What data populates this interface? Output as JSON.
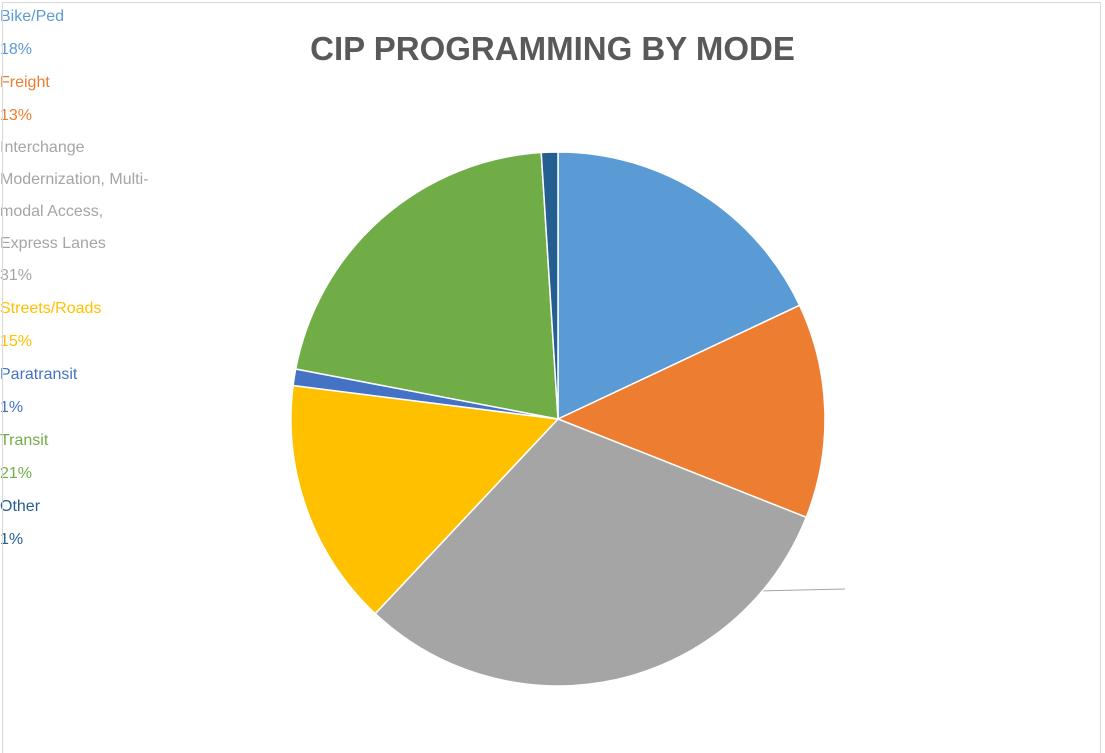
{
  "chart_data": {
    "type": "pie",
    "title": "CIP PROGRAMMING BY MODE",
    "categories": [
      "Bike/Ped",
      "Freight",
      "Interchange Modernization, Multi-modal Access, Express Lanes",
      "Streets/Roads",
      "Paratransit",
      "Transit",
      "Other"
    ],
    "values": [
      18,
      13,
      31,
      15,
      1,
      21,
      1
    ],
    "value_labels": [
      "18%",
      "13%",
      "31%",
      "15%",
      "1%",
      "21%",
      "1%"
    ],
    "colors": [
      "#5b9bd5",
      "#ed7d31",
      "#a5a5a5",
      "#ffc000",
      "#4472c4",
      "#70ad47",
      "#255e91"
    ]
  }
}
